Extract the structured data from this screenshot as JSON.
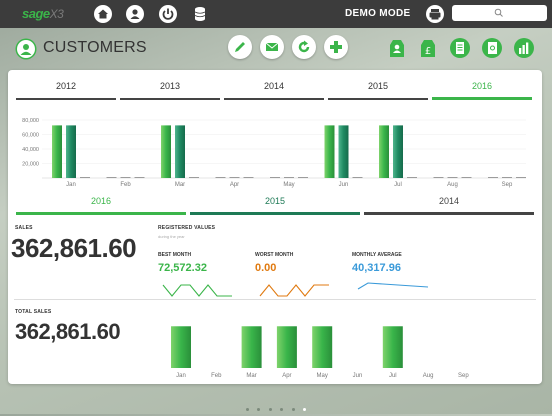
{
  "topbar": {
    "logo_main": "sage",
    "logo_suffix": "X3",
    "mode_label": "DEMO MODE"
  },
  "header": {
    "title": "CUSTOMERS"
  },
  "colors": {
    "accent_green": "#3bb54a",
    "dark_green": "#1e7a56",
    "teal": "#2a9d7a",
    "orange": "#e07a10",
    "blue": "#3a9ad9"
  },
  "year_tabs": [
    "2012",
    "2013",
    "2014",
    "2015",
    "2016"
  ],
  "active_year": "2016",
  "chart_data": [
    {
      "type": "bar",
      "categories": [
        "Jan",
        "Feb",
        "Mar",
        "Apr",
        "May",
        "Jun",
        "Jul",
        "Aug",
        "Sep"
      ],
      "series": [
        {
          "name": "2016",
          "values": [
            72572,
            0,
            72572,
            0,
            0,
            72572,
            72572,
            0,
            0
          ]
        },
        {
          "name": "2015",
          "values": [
            72572,
            0,
            72572,
            0,
            0,
            72572,
            72572,
            0,
            0
          ]
        }
      ],
      "yticks": [
        "80,000",
        "60,000",
        "40,000",
        "20,000"
      ],
      "ylim": [
        0,
        80000
      ]
    },
    {
      "type": "bar",
      "categories": [
        "Jan",
        "Feb",
        "Mar",
        "Apr",
        "May",
        "Jun",
        "Jul",
        "Aug",
        "Sep"
      ],
      "values": [
        72572,
        0,
        72572,
        72572,
        72572,
        0,
        72572,
        0,
        0
      ],
      "ylim": [
        0,
        80000
      ]
    }
  ],
  "compare_tabs": [
    {
      "label": "2016",
      "color": "#3bb54a"
    },
    {
      "label": "2015",
      "color": "#1e7a56"
    },
    {
      "label": "2014",
      "color": "#444444"
    }
  ],
  "sales": {
    "label": "SALES",
    "value": "362,861.60"
  },
  "registered": {
    "label": "REGISTERED VALUES",
    "sublabel": "during the year"
  },
  "kpis": [
    {
      "title": "BEST MONTH",
      "value": "72,572.32",
      "color": "#3bb54a"
    },
    {
      "title": "WORST MONTH",
      "value": "0.00",
      "color": "#e07a10"
    },
    {
      "title": "MONTHLY AVERAGE",
      "value": "40,317.96",
      "color": "#3a9ad9"
    }
  ],
  "total_sales": {
    "label": "TOTAL SALES",
    "value": "362,861.60"
  }
}
